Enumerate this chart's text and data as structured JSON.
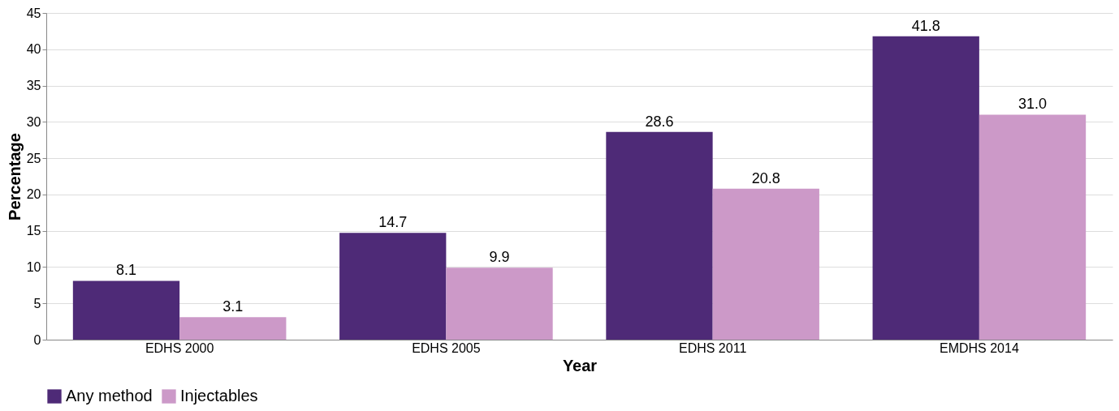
{
  "chart_data": {
    "type": "bar",
    "xlabel": "Year",
    "ylabel": "Percentage",
    "categories": [
      "EDHS 2000",
      "EDHS 2005",
      "EDHS 2011",
      "EMDHS 2014"
    ],
    "series": [
      {
        "name": "Any method",
        "color": "#4e2a77",
        "values": [
          8.1,
          14.7,
          28.6,
          41.8
        ],
        "value_labels": [
          "8.1",
          "14.7",
          "28.6",
          "41.8"
        ]
      },
      {
        "name": "Injectables",
        "color": "#cc99c8",
        "values": [
          3.1,
          9.9,
          20.8,
          31.0
        ],
        "value_labels": [
          "3.1",
          "9.9",
          "20.8",
          "31.0"
        ]
      }
    ],
    "ylim": [
      0,
      45
    ],
    "yticks": [
      0,
      5,
      10,
      15,
      20,
      25,
      30,
      35,
      40,
      45
    ],
    "grid": "y",
    "legend": "bottom"
  }
}
